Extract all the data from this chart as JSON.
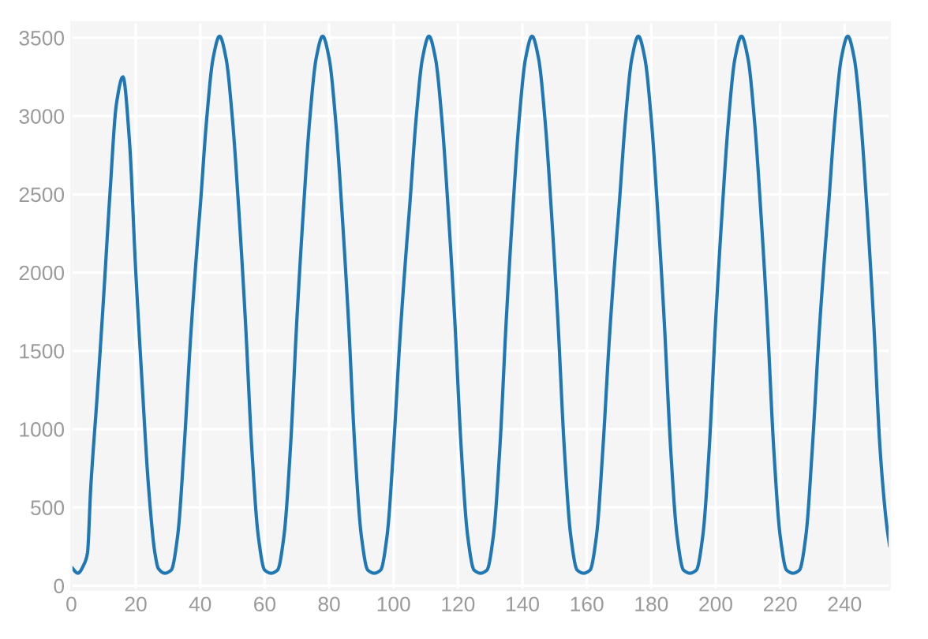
{
  "chart_data": {
    "type": "line",
    "x": [
      0,
      2,
      4,
      5,
      6,
      8,
      10,
      12,
      14,
      16,
      18,
      20,
      22,
      24,
      26,
      27,
      29,
      31,
      33,
      35,
      37,
      39,
      40,
      42,
      44,
      46,
      48,
      50,
      52,
      54,
      56,
      58,
      60,
      62,
      64,
      66,
      68,
      70,
      72,
      74,
      76,
      78,
      80,
      82,
      84,
      86,
      88,
      90,
      92,
      94,
      96,
      98,
      100,
      102,
      104,
      105,
      107,
      109,
      111,
      113,
      115,
      117,
      119,
      121,
      123,
      125,
      127,
      129,
      131,
      133,
      135,
      137,
      139,
      141,
      143,
      145,
      147,
      149,
      151,
      153,
      155,
      157,
      159,
      161,
      163,
      165,
      167,
      169,
      170,
      172,
      174,
      176,
      178,
      180,
      182,
      184,
      186,
      188,
      190,
      192,
      194,
      196,
      198,
      200,
      202,
      204,
      206,
      208,
      210,
      212,
      214,
      216,
      218,
      220,
      222,
      224,
      226,
      228,
      230,
      232,
      234,
      235,
      237,
      239,
      241,
      243,
      245,
      247,
      249,
      251,
      253,
      254
    ],
    "values": [
      120,
      80,
      140,
      210,
      620,
      1210,
      1840,
      2510,
      3080,
      3250,
      2850,
      2000,
      1280,
      620,
      200,
      110,
      80,
      100,
      320,
      880,
      1580,
      2160,
      2420,
      2980,
      3370,
      3510,
      3370,
      2980,
      2390,
      1700,
      880,
      320,
      100,
      80,
      100,
      320,
      880,
      1700,
      2390,
      2980,
      3370,
      3510,
      3370,
      2980,
      2390,
      1700,
      880,
      320,
      100,
      80,
      100,
      320,
      880,
      1580,
      2160,
      2420,
      2980,
      3370,
      3510,
      3370,
      2980,
      2390,
      1700,
      880,
      320,
      100,
      80,
      100,
      320,
      880,
      1700,
      2390,
      2980,
      3370,
      3510,
      3370,
      2980,
      2390,
      1700,
      880,
      320,
      100,
      80,
      100,
      320,
      880,
      1580,
      2160,
      2420,
      2980,
      3370,
      3510,
      3370,
      2980,
      2390,
      1700,
      880,
      320,
      100,
      80,
      100,
      320,
      880,
      1700,
      2390,
      2980,
      3370,
      3510,
      3370,
      2980,
      2390,
      1700,
      880,
      320,
      100,
      80,
      100,
      320,
      880,
      1580,
      2160,
      2420,
      2980,
      3370,
      3510,
      3370,
      2980,
      2390,
      1700,
      880,
      400,
      250
    ],
    "color": "#1f77b4",
    "xlim": [
      0,
      254
    ],
    "ylim": [
      -25,
      3600
    ],
    "xticks": [
      0,
      20,
      40,
      60,
      80,
      100,
      120,
      140,
      160,
      180,
      200,
      220,
      240
    ],
    "yticks": [
      0,
      500,
      1000,
      1500,
      2000,
      2500,
      3000,
      3500
    ],
    "grid": true
  }
}
